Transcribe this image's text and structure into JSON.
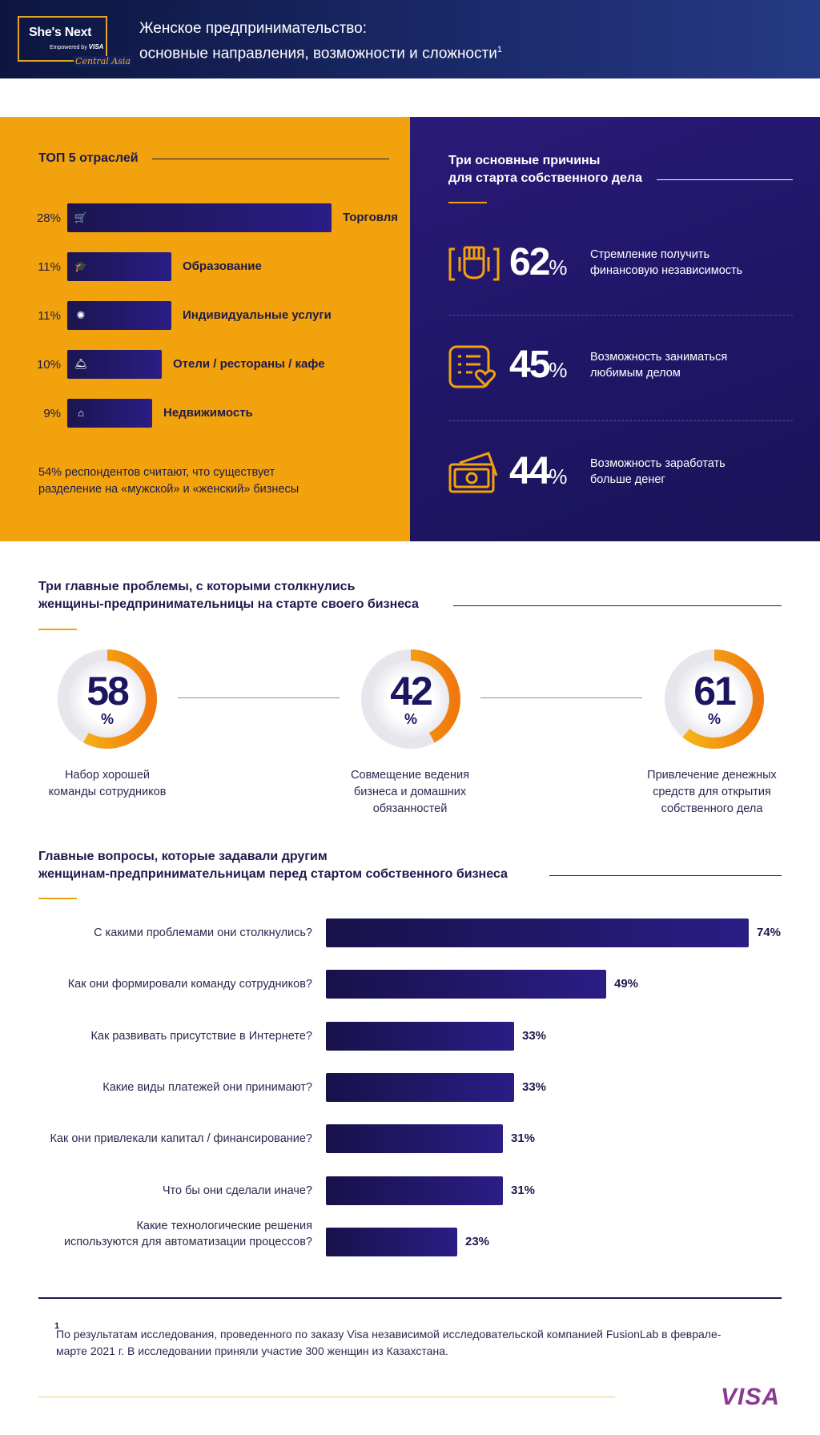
{
  "header": {
    "logo_line1": "She's Next",
    "logo_line2_prefix": "Empowered by",
    "logo_line2_brand": "VISA",
    "logo_line3": "Central Asia",
    "title_line1": "Женское предпринимательство:",
    "title_line2": "основные направления, возможности и сложности",
    "title_sup": "1"
  },
  "top5": {
    "title": "ТОП 5 отраслей",
    "items": [
      {
        "pct_label": "28%",
        "value": 28,
        "label": "Торговля",
        "icon": "shopping-cart-icon"
      },
      {
        "pct_label": "11%",
        "value": 11,
        "label": "Образование",
        "icon": "graduation-cap-icon"
      },
      {
        "pct_label": "11%",
        "value": 11,
        "label": "Индивидуальные услуги",
        "icon": "badge-icon"
      },
      {
        "pct_label": "10%",
        "value": 10,
        "label": "Отели / рестораны / кафе",
        "icon": "service-bell-icon"
      },
      {
        "pct_label": "9%",
        "value": 9,
        "label": "Недвижимость",
        "icon": "house-icon"
      }
    ],
    "note_line1": "54% респондентов считают, что существует",
    "note_line2": "разделение на «мужской» и «женский» бизнесы"
  },
  "reasons": {
    "title_line1": "Три основные причины",
    "title_line2": "для старта собственного дела",
    "items": [
      {
        "num": "62",
        "pct": "%",
        "text_line1": "Стремление получить",
        "text_line2": "финансовую независимость",
        "icon": "raised-fist-icon"
      },
      {
        "num": "45",
        "pct": "%",
        "text_line1": "Возможность заниматься",
        "text_line2": "любимым делом",
        "icon": "list-heart-icon"
      },
      {
        "num": "44",
        "pct": "%",
        "text_line1": "Возможность заработать",
        "text_line2": "больше денег",
        "icon": "money-bills-icon"
      }
    ]
  },
  "problems": {
    "title_line1": "Три главные проблемы, с которыми столкнулись",
    "title_line2": "женщины-предпринимательницы на старте своего бизнеса",
    "items": [
      {
        "num": "58",
        "pct": "%",
        "value": 58,
        "label_line1": "Набор хорошей",
        "label_line2": "команды сотрудников",
        "label_line3": ""
      },
      {
        "num": "42",
        "pct": "%",
        "value": 42,
        "label_line1": "Совмещение ведения",
        "label_line2": "бизнеса и домашних",
        "label_line3": "обязанностей"
      },
      {
        "num": "61",
        "pct": "%",
        "value": 61,
        "label_line1": "Привлечение денежных",
        "label_line2": "средств для открытия",
        "label_line3": "собственного дела"
      }
    ]
  },
  "questions": {
    "title_line1": "Главные вопросы, которые задавали другим",
    "title_line2": "женщинам-предпринимательницам перед стартом собственного бизнеса",
    "items": [
      {
        "label_line1": "С какими проблемами они столкнулись?",
        "label_line2": "",
        "value": 74,
        "value_label": "74%"
      },
      {
        "label_line1": "Как они формировали команду сотрудников?",
        "label_line2": "",
        "value": 49,
        "value_label": "49%"
      },
      {
        "label_line1": "Как развивать присутствие в Интернете?",
        "label_line2": "",
        "value": 33,
        "value_label": "33%"
      },
      {
        "label_line1": "Какие виды платежей они принимают?",
        "label_line2": "",
        "value": 33,
        "value_label": "33%"
      },
      {
        "label_line1": "Как они привлекали капитал / финансирование?",
        "label_line2": "",
        "value": 31,
        "value_label": "31%"
      },
      {
        "label_line1": "Что бы они сделали иначе?",
        "label_line2": "",
        "value": 31,
        "value_label": "31%"
      },
      {
        "label_line1": "Какие технологические решения",
        "label_line2": "используются для автоматизации процессов?",
        "value": 23,
        "value_label": "23%"
      }
    ]
  },
  "footnote": {
    "mark": "1",
    "text_line1": "По результатам исследования, проведенного по заказу Visa независимой исследовательской компанией FusionLab в феврале-",
    "text_line2": "марте 2021 г. В исследовании приняли участие 300 женщин из Казахстана."
  },
  "footer": {
    "brand": "VISA"
  },
  "colors": {
    "orange": "#f2a20c",
    "navy": "#1f1666",
    "bar": "#1b1550",
    "ring_gradient_start": "#f7c21a",
    "ring_gradient_end": "#f0780d"
  },
  "chart_data": [
    {
      "type": "bar",
      "title": "ТОП 5 отраслей",
      "categories": [
        "Торговля",
        "Образование",
        "Индивидуальные услуги",
        "Отели / рестораны / кафе",
        "Недвижимость"
      ],
      "values": [
        28,
        11,
        11,
        10,
        9
      ],
      "unit": "%"
    },
    {
      "type": "pie",
      "title": "Три главные проблемы, с которыми столкнулись женщины-предпринимательницы на старте своего бизнеса",
      "categories": [
        "Набор хорошей команды сотрудников",
        "Совмещение ведения бизнеса и домашних обязанностей",
        "Привлечение денежных средств для открытия собственного дела"
      ],
      "values": [
        58,
        42,
        61
      ],
      "unit": "%"
    },
    {
      "type": "bar",
      "title": "Главные вопросы, которые задавали другим женщинам-предпринимательницам перед стартом собственного бизнеса",
      "categories": [
        "С какими проблемами они столкнулись?",
        "Как они формировали команду сотрудников?",
        "Как развивать присутствие в Интернете?",
        "Какие виды платежей они принимают?",
        "Как они привлекали капитал / финансирование?",
        "Что бы они сделали иначе?",
        "Какие технологические решения используются для автоматизации процессов?"
      ],
      "values": [
        74,
        49,
        33,
        33,
        31,
        31,
        23
      ],
      "unit": "%"
    }
  ]
}
